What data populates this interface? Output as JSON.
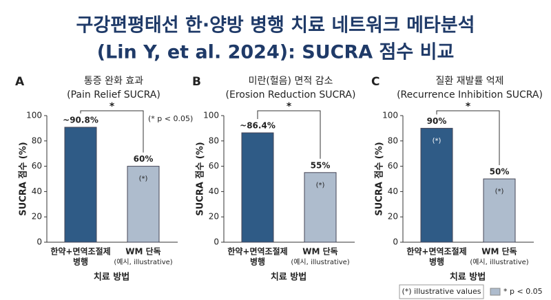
{
  "title": [
    "구강편평태선 한·양방 병행 치료 네트워크 메타분석",
    "(Lin Y, et al. 2024): SUCRA 점수 비교"
  ],
  "chart_data": [
    {
      "type": "bar",
      "panel": "A",
      "title": [
        "통증 완화 효과",
        "(Pain Relief SUCRA)"
      ],
      "categories": [
        [
          "한약+면역조절제",
          "병행"
        ],
        [
          "WM 단독",
          "(예시, illustrative)"
        ]
      ],
      "values": [
        90.8,
        60
      ],
      "value_labels": [
        "~90.8%",
        "60%"
      ],
      "bar_notes": [
        null,
        "(*)"
      ],
      "colors": [
        "#2f5b86",
        "#aebccd"
      ],
      "significance": "*",
      "note": "(* p < 0.05)",
      "ylabel": "SUCRA 점수 (%)",
      "xlabel": "치료 방법",
      "ylim": [
        0,
        100
      ],
      "yticks": [
        0,
        20,
        40,
        60,
        80,
        100
      ]
    },
    {
      "type": "bar",
      "panel": "B",
      "title": [
        "미란(헐음) 면적 감소",
        "(Erosion Reduction SUCRA)"
      ],
      "categories": [
        [
          "한약+면역조절제",
          "병행"
        ],
        [
          "WM 단독",
          "(예시, illustrative)"
        ]
      ],
      "values": [
        86.4,
        55
      ],
      "value_labels": [
        "~86.4%",
        "55%"
      ],
      "bar_notes": [
        null,
        "(*)"
      ],
      "colors": [
        "#2f5b86",
        "#aebccd"
      ],
      "significance": "*",
      "ylabel": "SUCRA 점수 (%)",
      "xlabel": "치료 방법",
      "ylim": [
        0,
        100
      ],
      "yticks": [
        0,
        20,
        40,
        60,
        80,
        100
      ]
    },
    {
      "type": "bar",
      "panel": "C",
      "title": [
        "질환 재발률 억제",
        "(Recurrence Inhibition SUCRA)"
      ],
      "categories": [
        [
          "한약+면역조절제",
          "병행"
        ],
        [
          "WM 단독",
          "(예시, illustrative)"
        ]
      ],
      "values": [
        90,
        50
      ],
      "value_labels": [
        "90%",
        "50%"
      ],
      "bar_notes": [
        "(*)",
        "(*)"
      ],
      "colors": [
        "#2f5b86",
        "#aebccd"
      ],
      "significance": "*",
      "ylabel": "SUCRA 점수 (%)",
      "xlabel": "치료 방법",
      "ylim": [
        0,
        100
      ],
      "yticks": [
        0,
        20,
        40,
        60,
        80,
        100
      ]
    }
  ],
  "legend": [
    "(*) illustrative values",
    "* p < 0.05"
  ]
}
